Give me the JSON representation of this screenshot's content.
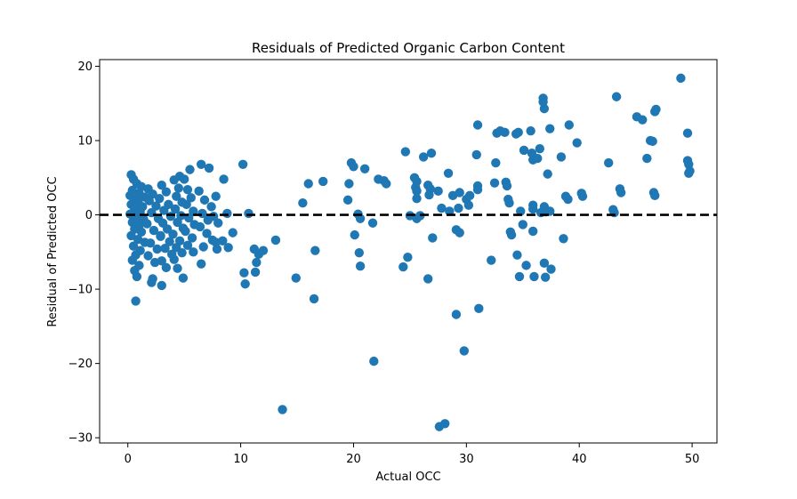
{
  "chart_data": {
    "type": "scatter",
    "title": "Residuals of Predicted Organic Carbon Content",
    "xlabel": "Actual OCC",
    "ylabel": "Residual of Predicted OCC",
    "xlim": [
      -2.5,
      52.2
    ],
    "ylim": [
      -30.7,
      20.9
    ],
    "xticks": [
      0,
      10,
      20,
      30,
      40,
      50
    ],
    "yticks": [
      20,
      10,
      0,
      -10,
      -20,
      -30
    ],
    "xtick_labels": [
      "0",
      "10",
      "20",
      "30",
      "40",
      "50"
    ],
    "ytick_labels": [
      "20",
      "10",
      "0",
      "−10",
      "−20",
      "−30"
    ],
    "grid": false,
    "reference_line": {
      "y": 0,
      "style": "dashed",
      "color": "#000000"
    },
    "point_color": "#1f77b4",
    "points": [
      [
        0.3,
        5.4
      ],
      [
        0.5,
        4.8
      ],
      [
        0.8,
        4.2
      ],
      [
        1.2,
        3.8
      ],
      [
        0.4,
        3.3
      ],
      [
        1.0,
        2.9
      ],
      [
        0.2,
        2.6
      ],
      [
        0.7,
        2.1
      ],
      [
        1.5,
        2.4
      ],
      [
        0.9,
        1.8
      ],
      [
        0.3,
        1.4
      ],
      [
        1.3,
        1.1
      ],
      [
        0.6,
        0.8
      ],
      [
        1.1,
        0.4
      ],
      [
        0.2,
        0.1
      ],
      [
        0.8,
        -0.3
      ],
      [
        1.4,
        -0.6
      ],
      [
        0.4,
        -1.0
      ],
      [
        1.0,
        -1.4
      ],
      [
        0.6,
        -1.9
      ],
      [
        1.2,
        -2.3
      ],
      [
        0.3,
        -2.8
      ],
      [
        0.9,
        -3.3
      ],
      [
        1.5,
        -3.7
      ],
      [
        0.5,
        -4.2
      ],
      [
        1.1,
        -4.8
      ],
      [
        0.7,
        -5.4
      ],
      [
        0.4,
        -6.1
      ],
      [
        1.0,
        -6.8
      ],
      [
        0.6,
        -7.5
      ],
      [
        0.8,
        -8.3
      ],
      [
        0.7,
        -11.6
      ],
      [
        1.8,
        3.5
      ],
      [
        2.2,
        2.8
      ],
      [
        1.9,
        1.9
      ],
      [
        2.5,
        1.2
      ],
      [
        2.1,
        0.3
      ],
      [
        2.7,
        -0.5
      ],
      [
        1.7,
        -1.2
      ],
      [
        2.3,
        -2.1
      ],
      [
        2.9,
        -2.9
      ],
      [
        2.0,
        -3.8
      ],
      [
        2.6,
        -4.6
      ],
      [
        1.8,
        -5.5
      ],
      [
        2.4,
        -6.4
      ],
      [
        2.2,
        -8.6
      ],
      [
        3.0,
        4.0
      ],
      [
        3.4,
        3.1
      ],
      [
        2.8,
        2.2
      ],
      [
        3.6,
        1.4
      ],
      [
        3.2,
        0.6
      ],
      [
        3.8,
        -0.2
      ],
      [
        3.1,
        -1.1
      ],
      [
        3.5,
        -1.9
      ],
      [
        2.9,
        -2.8
      ],
      [
        3.7,
        -3.6
      ],
      [
        3.3,
        -4.5
      ],
      [
        3.9,
        -5.3
      ],
      [
        3.0,
        -6.2
      ],
      [
        3.4,
        -7.1
      ],
      [
        3.0,
        -9.5
      ],
      [
        2.1,
        -9.1
      ],
      [
        4.1,
        4.7
      ],
      [
        4.5,
        3.6
      ],
      [
        4.3,
        2.5
      ],
      [
        4.8,
        1.7
      ],
      [
        4.2,
        0.8
      ],
      [
        4.7,
        -0.1
      ],
      [
        4.4,
        -1.0
      ],
      [
        4.9,
        -1.8
      ],
      [
        4.0,
        -2.6
      ],
      [
        4.6,
        -3.5
      ],
      [
        4.3,
        -4.4
      ],
      [
        4.8,
        -5.1
      ],
      [
        4.1,
        -6.0
      ],
      [
        4.4,
        -7.2
      ],
      [
        4.9,
        -8.5
      ],
      [
        4.6,
        5.2
      ],
      [
        5.0,
        4.8
      ],
      [
        5.3,
        3.4
      ],
      [
        5.6,
        2.3
      ],
      [
        5.2,
        1.4
      ],
      [
        5.8,
        0.5
      ],
      [
        5.4,
        -0.4
      ],
      [
        5.9,
        -1.3
      ],
      [
        5.1,
        -2.2
      ],
      [
        5.7,
        -3.1
      ],
      [
        5.3,
        -4.1
      ],
      [
        5.8,
        -5.0
      ],
      [
        5.5,
        6.1
      ],
      [
        6.5,
        6.8
      ],
      [
        7.2,
        6.3
      ],
      [
        6.3,
        3.2
      ],
      [
        6.8,
        2.0
      ],
      [
        7.4,
        1.1
      ],
      [
        6.6,
        0.2
      ],
      [
        7.1,
        -0.7
      ],
      [
        6.4,
        -1.6
      ],
      [
        7.0,
        -2.5
      ],
      [
        7.5,
        -3.4
      ],
      [
        6.7,
        -4.3
      ],
      [
        6.5,
        -6.6
      ],
      [
        7.8,
        2.5
      ],
      [
        7.6,
        -0.2
      ],
      [
        8.0,
        -1.1
      ],
      [
        7.8,
        -3.7
      ],
      [
        7.9,
        -4.6
      ],
      [
        8.5,
        4.8
      ],
      [
        8.8,
        0.2
      ],
      [
        8.4,
        -3.5
      ],
      [
        8.9,
        -4.4
      ],
      [
        9.3,
        -2.4
      ],
      [
        10.2,
        6.8
      ],
      [
        10.7,
        0.2
      ],
      [
        10.3,
        -7.8
      ],
      [
        10.4,
        -9.3
      ],
      [
        11.2,
        -4.6
      ],
      [
        11.4,
        -6.4
      ],
      [
        11.3,
        -7.7
      ],
      [
        11.6,
        -5.3
      ],
      [
        12.0,
        -4.8
      ],
      [
        13.1,
        -3.4
      ],
      [
        13.7,
        -26.2
      ],
      [
        14.9,
        -8.5
      ],
      [
        15.5,
        1.6
      ],
      [
        16.0,
        4.2
      ],
      [
        16.6,
        -4.8
      ],
      [
        16.5,
        -11.3
      ],
      [
        17.3,
        4.5
      ],
      [
        19.5,
        2.0
      ],
      [
        19.6,
        4.2
      ],
      [
        19.8,
        7.0
      ],
      [
        20.0,
        6.5
      ],
      [
        20.1,
        -2.7
      ],
      [
        20.4,
        0.1
      ],
      [
        20.6,
        -0.5
      ],
      [
        20.5,
        -5.1
      ],
      [
        20.6,
        -6.9
      ],
      [
        21.0,
        6.2
      ],
      [
        21.7,
        -1.1
      ],
      [
        21.8,
        -19.7
      ],
      [
        22.2,
        4.8
      ],
      [
        22.7,
        4.6
      ],
      [
        22.9,
        4.2
      ],
      [
        24.4,
        -7.0
      ],
      [
        24.6,
        8.5
      ],
      [
        24.8,
        -5.7
      ],
      [
        25.0,
        -0.1
      ],
      [
        25.4,
        5.0
      ],
      [
        25.6,
        4.5
      ],
      [
        25.5,
        3.7
      ],
      [
        25.6,
        3.2
      ],
      [
        25.6,
        2.2
      ],
      [
        25.6,
        -0.5
      ],
      [
        25.9,
        -0.1
      ],
      [
        26.2,
        7.8
      ],
      [
        26.6,
        4.0
      ],
      [
        26.8,
        3.5
      ],
      [
        26.7,
        2.7
      ],
      [
        26.6,
        -8.6
      ],
      [
        26.9,
        8.3
      ],
      [
        27.0,
        -3.1
      ],
      [
        27.5,
        3.2
      ],
      [
        27.6,
        -28.5
      ],
      [
        27.8,
        0.9
      ],
      [
        28.1,
        -28.1
      ],
      [
        28.4,
        5.6
      ],
      [
        28.5,
        0.5
      ],
      [
        28.8,
        2.6
      ],
      [
        29.1,
        -2.0
      ],
      [
        29.1,
        -13.4
      ],
      [
        29.3,
        0.9
      ],
      [
        29.4,
        3.0
      ],
      [
        29.4,
        -2.4
      ],
      [
        29.8,
        -18.3
      ],
      [
        30.0,
        2.1
      ],
      [
        30.2,
        1.3
      ],
      [
        30.3,
        2.6
      ],
      [
        30.9,
        8.1
      ],
      [
        31.0,
        3.9
      ],
      [
        31.0,
        3.4
      ],
      [
        31.0,
        12.1
      ],
      [
        31.1,
        -12.6
      ],
      [
        32.2,
        -6.1
      ],
      [
        32.6,
        7.0
      ],
      [
        32.5,
        4.3
      ],
      [
        32.7,
        11.0
      ],
      [
        33.0,
        11.3
      ],
      [
        33.4,
        11.1
      ],
      [
        33.5,
        4.4
      ],
      [
        33.6,
        3.9
      ],
      [
        33.7,
        2.1
      ],
      [
        33.8,
        1.6
      ],
      [
        33.9,
        -2.3
      ],
      [
        34.0,
        -2.7
      ],
      [
        34.4,
        10.9
      ],
      [
        34.6,
        11.1
      ],
      [
        34.5,
        -5.4
      ],
      [
        34.7,
        -8.3
      ],
      [
        34.8,
        0.5
      ],
      [
        35.0,
        -1.3
      ],
      [
        35.1,
        8.7
      ],
      [
        35.3,
        -6.8
      ],
      [
        35.7,
        11.3
      ],
      [
        35.8,
        8.3
      ],
      [
        35.9,
        7.4
      ],
      [
        35.9,
        1.3
      ],
      [
        35.9,
        0.8
      ],
      [
        35.9,
        -2.2
      ],
      [
        36.0,
        -8.3
      ],
      [
        36.3,
        7.6
      ],
      [
        36.5,
        8.9
      ],
      [
        36.6,
        0.3
      ],
      [
        36.8,
        15.7
      ],
      [
        36.8,
        15.2
      ],
      [
        36.9,
        14.3
      ],
      [
        36.9,
        1.1
      ],
      [
        36.9,
        -6.5
      ],
      [
        37.0,
        0.4
      ],
      [
        37.0,
        -8.4
      ],
      [
        37.2,
        5.5
      ],
      [
        37.4,
        11.6
      ],
      [
        37.4,
        0.5
      ],
      [
        37.5,
        -7.3
      ],
      [
        38.4,
        7.8
      ],
      [
        38.6,
        -3.2
      ],
      [
        38.8,
        2.5
      ],
      [
        39.0,
        2.1
      ],
      [
        39.1,
        12.1
      ],
      [
        39.8,
        9.7
      ],
      [
        40.2,
        2.9
      ],
      [
        40.3,
        2.5
      ],
      [
        42.6,
        7.0
      ],
      [
        43.0,
        0.7
      ],
      [
        43.1,
        0.3
      ],
      [
        43.3,
        15.9
      ],
      [
        43.6,
        3.5
      ],
      [
        43.7,
        3.0
      ],
      [
        45.1,
        13.2
      ],
      [
        45.6,
        12.8
      ],
      [
        46.0,
        7.6
      ],
      [
        46.3,
        10.0
      ],
      [
        46.5,
        9.9
      ],
      [
        46.6,
        3.0
      ],
      [
        46.7,
        2.6
      ],
      [
        46.7,
        13.9
      ],
      [
        46.8,
        14.2
      ],
      [
        49.0,
        18.4
      ],
      [
        49.6,
        11.0
      ],
      [
        49.6,
        7.3
      ],
      [
        49.7,
        6.8
      ],
      [
        49.8,
        5.9
      ],
      [
        49.7,
        5.6
      ]
    ]
  }
}
